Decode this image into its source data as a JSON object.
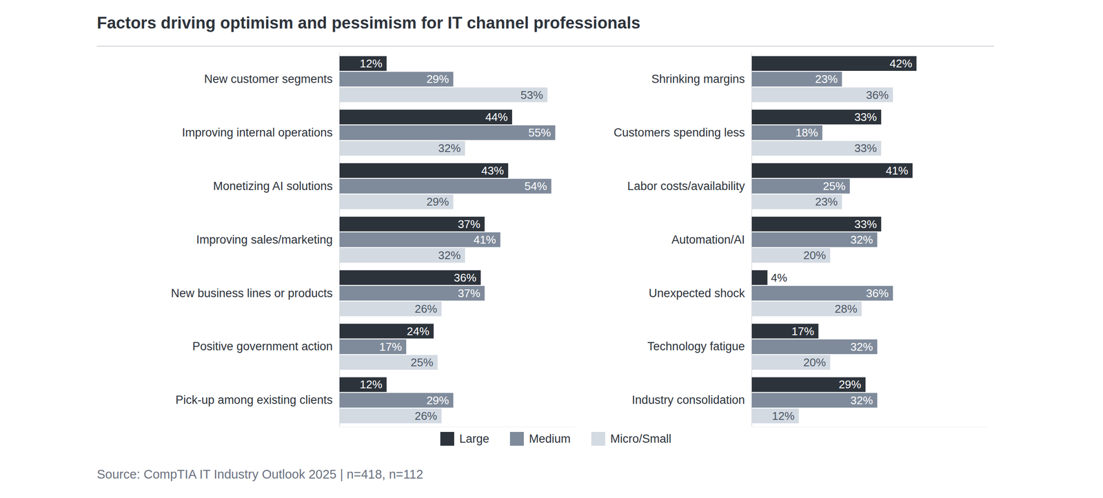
{
  "title": "Factors driving optimism and pessimism for IT channel professionals",
  "source": "Source: CompTIA IT Industry Outlook 2025 | n=418, n=112",
  "chart_data": [
    {
      "type": "bar",
      "orientation": "horizontal",
      "data_labels": true,
      "tick_labels": "y",
      "grid": false,
      "legend": "bottom",
      "xlim": [
        0,
        60
      ],
      "categories": [
        "New customer segments",
        "Improving internal operations",
        "Monetizing AI solutions",
        "Improving sales/marketing",
        "New business lines or products",
        "Positive government action",
        "Pick-up among existing clients"
      ],
      "series": [
        {
          "name": "Large",
          "color": "#2d333b",
          "values": [
            12,
            44,
            43,
            37,
            36,
            24,
            12
          ],
          "value_labels": [
            "12%",
            "44%",
            "43%",
            "37%",
            "36%",
            "24%",
            "12%"
          ]
        },
        {
          "name": "Medium",
          "color": "#7f8b9b",
          "values": [
            29,
            55,
            54,
            41,
            37,
            17,
            29
          ],
          "value_labels": [
            "29%",
            "55%",
            "54%",
            "41%",
            "37%",
            "17%",
            "29%"
          ]
        },
        {
          "name": "Micro/Small",
          "color": "#d3dae2",
          "values": [
            53,
            32,
            29,
            32,
            26,
            25,
            26
          ],
          "value_labels": [
            "53%",
            "32%",
            "29%",
            "32%",
            "26%",
            "25%",
            "26%"
          ]
        }
      ]
    },
    {
      "type": "bar",
      "orientation": "horizontal",
      "data_labels": true,
      "tick_labels": "y",
      "grid": false,
      "xlim": [
        0,
        60
      ],
      "categories": [
        "Shrinking margins",
        "Customers spending less",
        "Labor costs/availability",
        "Automation/AI",
        "Unexpected shock",
        "Technology fatigue",
        "Industry consolidation"
      ],
      "series": [
        {
          "name": "Large",
          "color": "#2d333b",
          "values": [
            42,
            33,
            41,
            33,
            4,
            17,
            29
          ],
          "value_labels": [
            "42%",
            "33%",
            "41%",
            "33%",
            "4%",
            "17%",
            "29%"
          ]
        },
        {
          "name": "Medium",
          "color": "#7f8b9b",
          "values": [
            23,
            18,
            25,
            32,
            36,
            32,
            32
          ],
          "value_labels": [
            "23%",
            "18%",
            "25%",
            "32%",
            "36%",
            "32%",
            "32%"
          ]
        },
        {
          "name": "Micro/Small",
          "color": "#d3dae2",
          "values": [
            36,
            33,
            23,
            20,
            28,
            20,
            12
          ],
          "value_labels": [
            "36%",
            "33%",
            "23%",
            "20%",
            "28%",
            "20%",
            "12%"
          ]
        }
      ]
    }
  ]
}
